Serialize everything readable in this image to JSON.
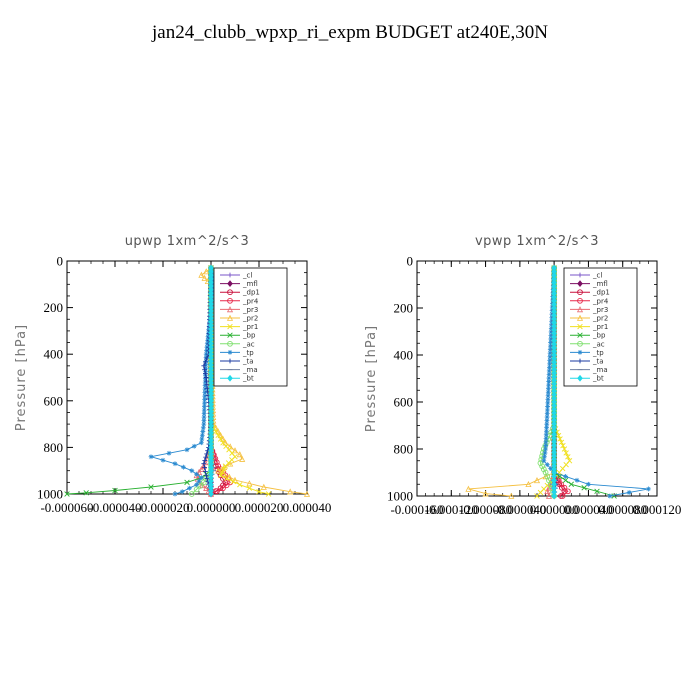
{
  "title": "jan24_clubb_wpxp_ri_expm  BUDGET at240E,30N",
  "colors": {
    "_cl": "#7a55c8",
    "_mfl": "#7d0f63",
    "_dp1": "#c8103c",
    "_pr4": "#e8284a",
    "_pr3": "#e86a70",
    "_pr2": "#f5c040",
    "_pr1": "#f0e020",
    "_bp": "#28b030",
    "_ac": "#80e070",
    "_tp": "#2a8ad0",
    "_ta": "#1a3aa0",
    "_ma": "#7080a0",
    "_bt": "#20d8e8"
  },
  "chart_data": [
    {
      "type": "line",
      "title": "upwp   1xm^2/s^3",
      "ylabel": "Pressure [hPa]",
      "xlim": [
        -6e-05,
        4e-05
      ],
      "ylim": [
        1000,
        0
      ],
      "x_ticks": [
        "-0.000060",
        "-0.000040",
        "-0.000020",
        "0.000000",
        "0.000020",
        "0.000040"
      ],
      "x_tick_values": [
        -6e-05,
        -4e-05,
        -2e-05,
        0,
        2e-05,
        4e-05
      ],
      "y_ticks": [
        0,
        200,
        400,
        600,
        800,
        1000
      ],
      "legend": [
        "_cl",
        "_mfl",
        "_dp1",
        "_pr4",
        "_pr3",
        "_pr2",
        "_pr1",
        "_bp",
        "_ac",
        "_tp",
        "_ta",
        "_ma",
        "_bt"
      ],
      "legend_position": "top-right",
      "series": [
        {
          "name": "_cl",
          "p": [
            30,
            200,
            400,
            600,
            800,
            900,
            950,
            1000
          ],
          "x": [
            0,
            0,
            0,
            0,
            0,
            0,
            0,
            0
          ]
        },
        {
          "name": "_mfl",
          "p": [
            30,
            200,
            400,
            600,
            800,
            900,
            950,
            1000
          ],
          "x": [
            0,
            0,
            0,
            0,
            0,
            0,
            0,
            0
          ]
        },
        {
          "name": "_dp1",
          "p": [
            30,
            400,
            800,
            880,
            920,
            950,
            975,
            1000
          ],
          "x": [
            0,
            0,
            0,
            2e-06,
            4e-06,
            6e-06,
            4e-06,
            0
          ]
        },
        {
          "name": "_pr4",
          "p": [
            30,
            400,
            800,
            880,
            920,
            950,
            975,
            1000
          ],
          "x": [
            0,
            0,
            0,
            3e-06,
            6e-06,
            8e-06,
            5e-06,
            0
          ]
        },
        {
          "name": "_pr3",
          "p": [
            30,
            400,
            800,
            880,
            920,
            950,
            975,
            1000
          ],
          "x": [
            0,
            0,
            0,
            -3e-06,
            -6e-06,
            -5e-06,
            -2e-06,
            0
          ]
        },
        {
          "name": "_pr2",
          "p": [
            30,
            60,
            100,
            300,
            700,
            780,
            830,
            850,
            870,
            900,
            940,
            970,
            990,
            1000
          ],
          "x": [
            0,
            -4e-06,
            0,
            0,
            1e-06,
            6e-06,
            1.2e-05,
            1.3e-05,
            8e-06,
            3e-06,
            1e-05,
            2.2e-05,
            3.3e-05,
            4e-05
          ]
        },
        {
          "name": "_pr1",
          "p": [
            30,
            400,
            700,
            780,
            840,
            880,
            920,
            960,
            990,
            1000
          ],
          "x": [
            0,
            0,
            0,
            5e-06,
            1e-05,
            6e-06,
            4e-06,
            1.2e-05,
            2e-05,
            2.4e-05
          ]
        },
        {
          "name": "_bp",
          "p": [
            30,
            600,
            900,
            930,
            950,
            970,
            985,
            995,
            1000
          ],
          "x": [
            0,
            0,
            0,
            -4e-06,
            -1e-05,
            -2.5e-05,
            -4e-05,
            -5.2e-05,
            -6e-05
          ]
        },
        {
          "name": "_ac",
          "p": [
            30,
            600,
            900,
            950,
            980,
            1000
          ],
          "x": [
            0,
            0,
            0,
            -3e-06,
            -6e-06,
            -8e-06
          ]
        },
        {
          "name": "_tp",
          "p": [
            30,
            100,
            400,
            700,
            780,
            810,
            840,
            870,
            900,
            930,
            960,
            990,
            1000
          ],
          "x": [
            0,
            1e-06,
            -2e-06,
            -3e-06,
            -4e-06,
            -1e-05,
            -2.5e-05,
            -1.5e-05,
            -8e-06,
            -4e-06,
            -6e-06,
            -1.2e-05,
            -1.5e-05
          ]
        },
        {
          "name": "_ta",
          "p": [
            30,
            400,
            450,
            500,
            700,
            800,
            870,
            920,
            960,
            1000
          ],
          "x": [
            0,
            -1e-06,
            -3e-06,
            -2e-06,
            0,
            -1e-06,
            -3e-06,
            -2e-06,
            -1e-06,
            0
          ]
        },
        {
          "name": "_ma",
          "p": [
            30,
            400,
            800,
            900,
            960,
            1000
          ],
          "x": [
            0,
            0,
            0,
            1e-06,
            -1e-06,
            0
          ]
        },
        {
          "name": "_bt",
          "p": [
            30,
            200,
            400,
            600,
            800,
            900,
            960,
            1000
          ],
          "x": [
            0,
            0,
            0,
            0,
            0,
            0,
            0,
            0
          ]
        }
      ]
    },
    {
      "type": "line",
      "title": "vpwp   1xm^2/s^3",
      "ylabel": "Pressure [hPa]",
      "xlim": [
        -0.00016,
        0.00012
      ],
      "ylim": [
        1000,
        0
      ],
      "x_ticks": [
        "-0.000160",
        "-0.000120",
        "-0.000080",
        "-0.000040",
        "0.000000",
        "0.000040",
        "0.000080",
        "0.000120"
      ],
      "x_tick_values": [
        -0.00016,
        -0.00012,
        -8e-05,
        -4e-05,
        0,
        4e-05,
        8e-05,
        0.00012
      ],
      "y_ticks": [
        0,
        200,
        400,
        600,
        800,
        1000
      ],
      "legend": [
        "_cl",
        "_mfl",
        "_dp1",
        "_pr4",
        "_pr3",
        "_pr2",
        "_pr1",
        "_bp",
        "_ac",
        "_tp",
        "_ta",
        "_ma",
        "_bt"
      ],
      "legend_position": "top-right",
      "series": [
        {
          "name": "_cl",
          "p": [
            30,
            200,
            400,
            600,
            800,
            900,
            950,
            1000
          ],
          "x": [
            0,
            0,
            0,
            0,
            0,
            0,
            0,
            0
          ]
        },
        {
          "name": "_mfl",
          "p": [
            30,
            200,
            400,
            600,
            800,
            900,
            950,
            1000
          ],
          "x": [
            0,
            0,
            0,
            0,
            0,
            0,
            0,
            0
          ]
        },
        {
          "name": "_dp1",
          "p": [
            30,
            600,
            900,
            950,
            980,
            1000
          ],
          "x": [
            0,
            0,
            0,
            6e-06,
            1.2e-05,
            8e-06
          ]
        },
        {
          "name": "_pr4",
          "p": [
            30,
            600,
            900,
            950,
            980,
            1000
          ],
          "x": [
            0,
            0,
            0,
            8e-06,
            1.6e-05,
            1e-05
          ]
        },
        {
          "name": "_pr3",
          "p": [
            30,
            600,
            900,
            950,
            980,
            1000
          ],
          "x": [
            0,
            0,
            0,
            -4e-06,
            -8e-06,
            -6e-06
          ]
        },
        {
          "name": "_pr2",
          "p": [
            30,
            800,
            900,
            950,
            970,
            990,
            1000
          ],
          "x": [
            0,
            0,
            0,
            -3e-05,
            -0.0001,
            -8e-05,
            -5e-05
          ]
        },
        {
          "name": "_pr1",
          "p": [
            30,
            700,
            800,
            850,
            900,
            940,
            970,
            1000
          ],
          "x": [
            0,
            0,
            1.2e-05,
            1.8e-05,
            6e-06,
            -4e-06,
            -1.2e-05,
            -2e-05
          ]
        },
        {
          "name": "_bp",
          "p": [
            30,
            800,
            900,
            950,
            980,
            1000
          ],
          "x": [
            0,
            0,
            0,
            2e-05,
            5e-05,
            7e-05
          ]
        },
        {
          "name": "_ac",
          "p": [
            30,
            700,
            800,
            860,
            900,
            950,
            1000
          ],
          "x": [
            0,
            0,
            -1.2e-05,
            -1.6e-05,
            -1e-05,
            -4e-06,
            0
          ]
        },
        {
          "name": "_tp",
          "p": [
            30,
            800,
            850,
            900,
            950,
            970,
            1000
          ],
          "x": [
            0,
            -1e-05,
            -1.2e-05,
            0,
            4e-05,
            0.00011,
            6.5e-05
          ]
        },
        {
          "name": "_ta",
          "p": [
            30,
            600,
            900,
            950,
            1000
          ],
          "x": [
            0,
            0,
            0,
            2e-06,
            0
          ]
        },
        {
          "name": "_ma",
          "p": [
            30,
            600,
            900,
            950,
            1000
          ],
          "x": [
            0,
            0,
            0,
            -2e-06,
            0
          ]
        },
        {
          "name": "_bt",
          "p": [
            30,
            200,
            400,
            600,
            800,
            900,
            950,
            1000
          ],
          "x": [
            0,
            0,
            0,
            0,
            0,
            0,
            0,
            0
          ]
        }
      ]
    }
  ]
}
